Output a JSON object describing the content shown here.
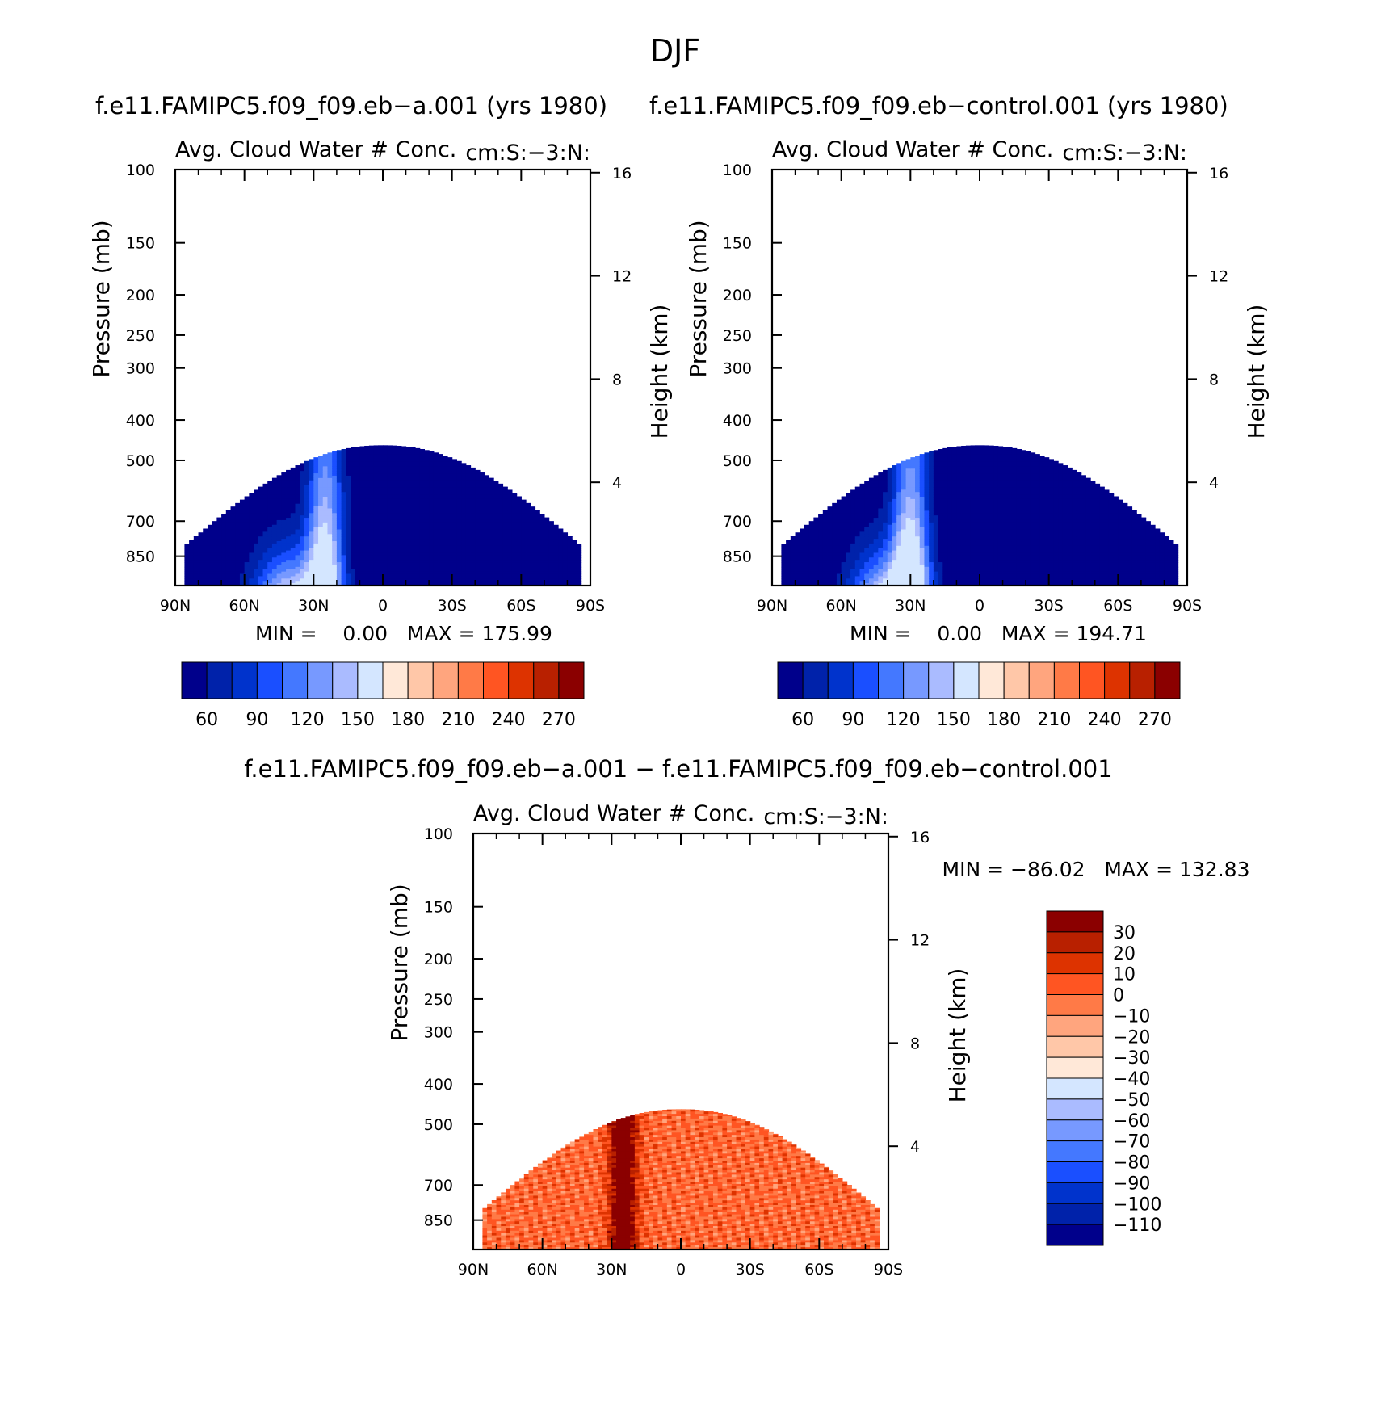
{
  "figure": {
    "title": "DJF"
  },
  "panels": [
    {
      "id": "case",
      "run_title": "f.e11.FAMIPC5.f09_f09.eb−a.001 (yrs 1980)",
      "variable": "Avg. Cloud Water # Conc.",
      "units": "cm:S:−3:N:",
      "stats": "MIN =    0.00   MAX = 175.99"
    },
    {
      "id": "control",
      "run_title": "f.e11.FAMIPC5.f09_f09.eb−control.001 (yrs 1980)",
      "variable": "Avg. Cloud Water # Conc.",
      "units": "cm:S:−3:N:",
      "stats": "MIN =    0.00   MAX = 194.71"
    },
    {
      "id": "diff",
      "run_title": "f.e11.FAMIPC5.f09_f09.eb−a.001  −  f.e11.FAMIPC5.f09_f09.eb−control.001",
      "variable": "Avg. Cloud Water # Conc.",
      "units": "cm:S:−3:N:",
      "stats": "MIN = −86.02   MAX = 132.83"
    }
  ],
  "colors": {
    "blue_red_16": [
      "#00008b",
      "#0022aa",
      "#0033cc",
      "#1a4fff",
      "#4478ff",
      "#7799ff",
      "#aabbff",
      "#d4e6ff",
      "#ffe8d8",
      "#ffc7a8",
      "#ffa57e",
      "#ff7a47",
      "#ff5522",
      "#dd3300",
      "#b82000",
      "#8b0000"
    ],
    "diff_colors": [
      "#8b0000",
      "#b82000",
      "#dd3300",
      "#ff5522",
      "#ff7a47",
      "#ffa57e",
      "#ffc7a8",
      "#ffe8d8",
      "#d4e6ff",
      "#aabbff",
      "#7799ff",
      "#4478ff",
      "#1a4fff",
      "#0033cc",
      "#0022aa",
      "#00008b"
    ]
  },
  "chart_data": [
    {
      "type": "heatmap",
      "title": "Avg. Cloud Water # Conc.",
      "units": "cm:S:−3:N:",
      "xlabel": "",
      "ylabel": "Pressure (mb)",
      "y2label": "Height (km)",
      "xlim": [
        90,
        -90
      ],
      "ylim": [
        100,
        1000
      ],
      "xticks": [
        {
          "v": 90,
          "label": "90N"
        },
        {
          "v": 60,
          "label": "60N"
        },
        {
          "v": 30,
          "label": "30N"
        },
        {
          "v": 0,
          "label": "0"
        },
        {
          "v": -30,
          "label": "30S"
        },
        {
          "v": -60,
          "label": "60S"
        },
        {
          "v": -90,
          "label": "90S"
        }
      ],
      "yticks": [
        100,
        150,
        200,
        250,
        300,
        400,
        500,
        700,
        850
      ],
      "y2ticks": [
        16,
        12,
        8,
        4
      ],
      "colorbar_labels": [
        "60",
        "90",
        "120",
        "150",
        "180",
        "210",
        "240",
        "270"
      ],
      "min": 0.0,
      "max": 175.99,
      "cloud_top_hpa": 460,
      "peak_lat": 25
    },
    {
      "type": "heatmap",
      "title": "Avg. Cloud Water # Conc.",
      "units": "cm:S:−3:N:",
      "xlabel": "",
      "ylabel": "Pressure (mb)",
      "y2label": "Height (km)",
      "xlim": [
        90,
        -90
      ],
      "ylim": [
        100,
        1000
      ],
      "xticks": [
        {
          "v": 90,
          "label": "90N"
        },
        {
          "v": 60,
          "label": "60N"
        },
        {
          "v": 30,
          "label": "30N"
        },
        {
          "v": 0,
          "label": "0"
        },
        {
          "v": -30,
          "label": "30S"
        },
        {
          "v": -60,
          "label": "60S"
        },
        {
          "v": -90,
          "label": "90S"
        }
      ],
      "yticks": [
        100,
        150,
        200,
        250,
        300,
        400,
        500,
        700,
        850
      ],
      "y2ticks": [
        16,
        12,
        8,
        4
      ],
      "colorbar_labels": [
        "60",
        "90",
        "120",
        "150",
        "180",
        "210",
        "240",
        "270"
      ],
      "min": 0.0,
      "max": 194.71,
      "cloud_top_hpa": 460,
      "peak_lat": 30
    },
    {
      "type": "heatmap",
      "title": "Avg. Cloud Water # Conc.",
      "units": "cm:S:−3:N:",
      "xlabel": "",
      "ylabel": "Pressure (mb)",
      "y2label": "Height (km)",
      "xlim": [
        90,
        -90
      ],
      "ylim": [
        100,
        1000
      ],
      "xticks": [
        {
          "v": 90,
          "label": "90N"
        },
        {
          "v": 60,
          "label": "60N"
        },
        {
          "v": 30,
          "label": "30N"
        },
        {
          "v": 0,
          "label": "0"
        },
        {
          "v": -30,
          "label": "30S"
        },
        {
          "v": -60,
          "label": "60S"
        },
        {
          "v": -90,
          "label": "90S"
        }
      ],
      "yticks": [
        100,
        150,
        200,
        250,
        300,
        400,
        500,
        700,
        850
      ],
      "y2ticks": [
        16,
        12,
        8,
        4
      ],
      "colorbar_labels": [
        "30",
        "20",
        "10",
        "0",
        "−10",
        "−20",
        "−30",
        "−40",
        "−50",
        "−60",
        "−70",
        "−80",
        "−90",
        "−100",
        "−110"
      ],
      "min": -86.02,
      "max": 132.83,
      "cloud_top_hpa": 460,
      "peak_lat": 25
    }
  ]
}
